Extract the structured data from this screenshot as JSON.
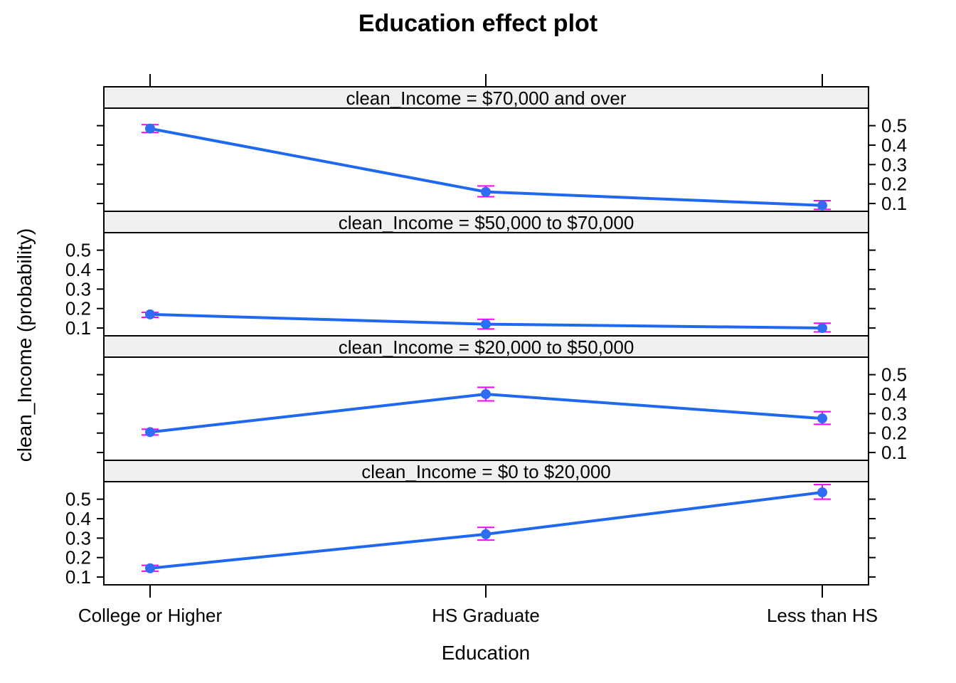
{
  "colors": {
    "line": "#1f68f0",
    "point": "#2f6df7",
    "errorbar": "#ff00ff",
    "strip": "#f0f0f0"
  },
  "chart_data": {
    "type": "line",
    "title": "Education effect plot",
    "xlabel": "Education",
    "ylabel": "clean_Income (probability)",
    "categories": [
      "College or Higher",
      "HS Graduate",
      "Less than HS"
    ],
    "yticks": [
      "0.1",
      "0.2",
      "0.3",
      "0.4",
      "0.5"
    ],
    "ylim": [
      0.06,
      0.59
    ],
    "panels": [
      {
        "strip": "clean_Income = $70,000 and over",
        "values": [
          0.485,
          0.16,
          0.09
        ],
        "lower": [
          0.465,
          0.135,
          0.07
        ],
        "upper": [
          0.505,
          0.19,
          0.115
        ]
      },
      {
        "strip": "clean_Income = $50,000 to $70,000",
        "values": [
          0.17,
          0.12,
          0.1
        ],
        "lower": [
          0.155,
          0.095,
          0.08
        ],
        "upper": [
          0.18,
          0.145,
          0.125
        ]
      },
      {
        "strip": "clean_Income = $20,000 to $50,000",
        "values": [
          0.205,
          0.4,
          0.275
        ],
        "lower": [
          0.19,
          0.365,
          0.245
        ],
        "upper": [
          0.22,
          0.435,
          0.31
        ]
      },
      {
        "strip": "clean_Income = $0 to $20,000",
        "values": [
          0.145,
          0.32,
          0.535
        ],
        "lower": [
          0.13,
          0.29,
          0.5
        ],
        "upper": [
          0.16,
          0.355,
          0.575
        ]
      }
    ]
  }
}
